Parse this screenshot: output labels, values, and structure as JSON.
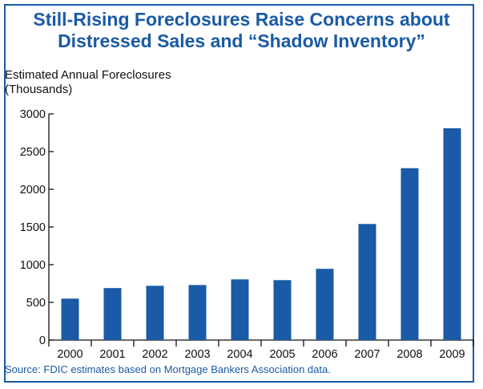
{
  "colors": {
    "bar": "#1a5aa6",
    "title": "#1a5aa6",
    "border": "#1a5aa6",
    "axis": "#111111",
    "source_text": "#1a5aa6"
  },
  "chart_data": {
    "type": "bar",
    "title_lines": [
      "Still-Rising Foreclosures Raise Concerns about",
      "Distressed Sales and “Shadow Inventory”"
    ],
    "ylabel_lines": [
      "Estimated Annual Foreclosures",
      "(Thousands)"
    ],
    "xlabel": "",
    "categories": [
      "2000",
      "2001",
      "2002",
      "2003",
      "2004",
      "2005",
      "2006",
      "2007",
      "2008",
      "2009"
    ],
    "values": [
      550,
      690,
      720,
      730,
      805,
      795,
      945,
      1540,
      2280,
      2810
    ],
    "ylim": [
      0,
      3000
    ],
    "yticks": [
      0,
      500,
      1000,
      1500,
      2000,
      2500,
      3000
    ],
    "grid": false,
    "legend": "none",
    "source": "Source: FDIC estimates based on Mortgage Bankers Association data."
  }
}
